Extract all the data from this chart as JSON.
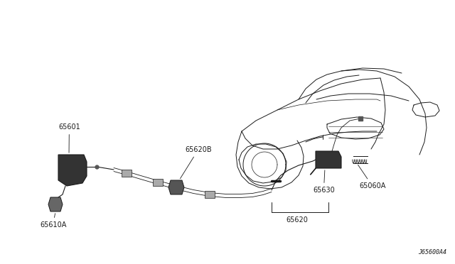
{
  "bg_color": "#ffffff",
  "line_color": "#1a1a1a",
  "label_color": "#1a1a1a",
  "title_code": "J65600A4",
  "figsize": [
    6.4,
    3.72
  ],
  "dpi": 100,
  "xlim": [
    0,
    640
  ],
  "ylim": [
    0,
    372
  ]
}
